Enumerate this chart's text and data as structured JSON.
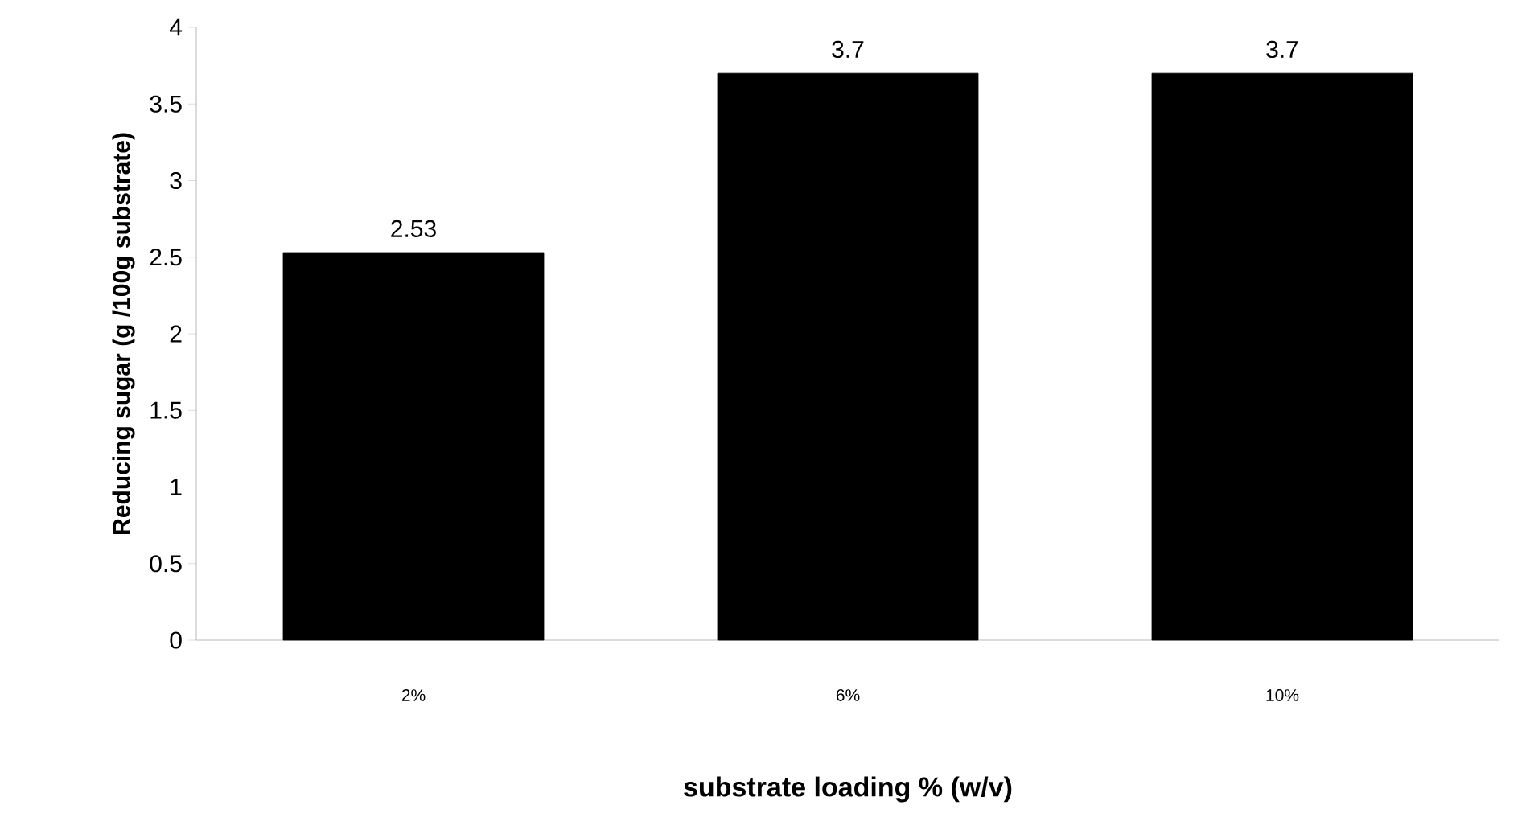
{
  "chart_data": {
    "type": "bar",
    "xlabel": "substrate loading % (w/v)",
    "ylabel": "Reducing  sugar (g /100g substrate)",
    "categories": [
      "2%",
      "6%",
      "10%"
    ],
    "values": [
      2.53,
      3.7,
      3.7
    ],
    "color": "#000000",
    "ylim": [
      0,
      4
    ],
    "yticks": [
      0,
      0.5,
      1,
      1.5,
      2,
      2.5,
      3,
      3.5,
      4
    ],
    "data_labels": true,
    "grid": false
  }
}
